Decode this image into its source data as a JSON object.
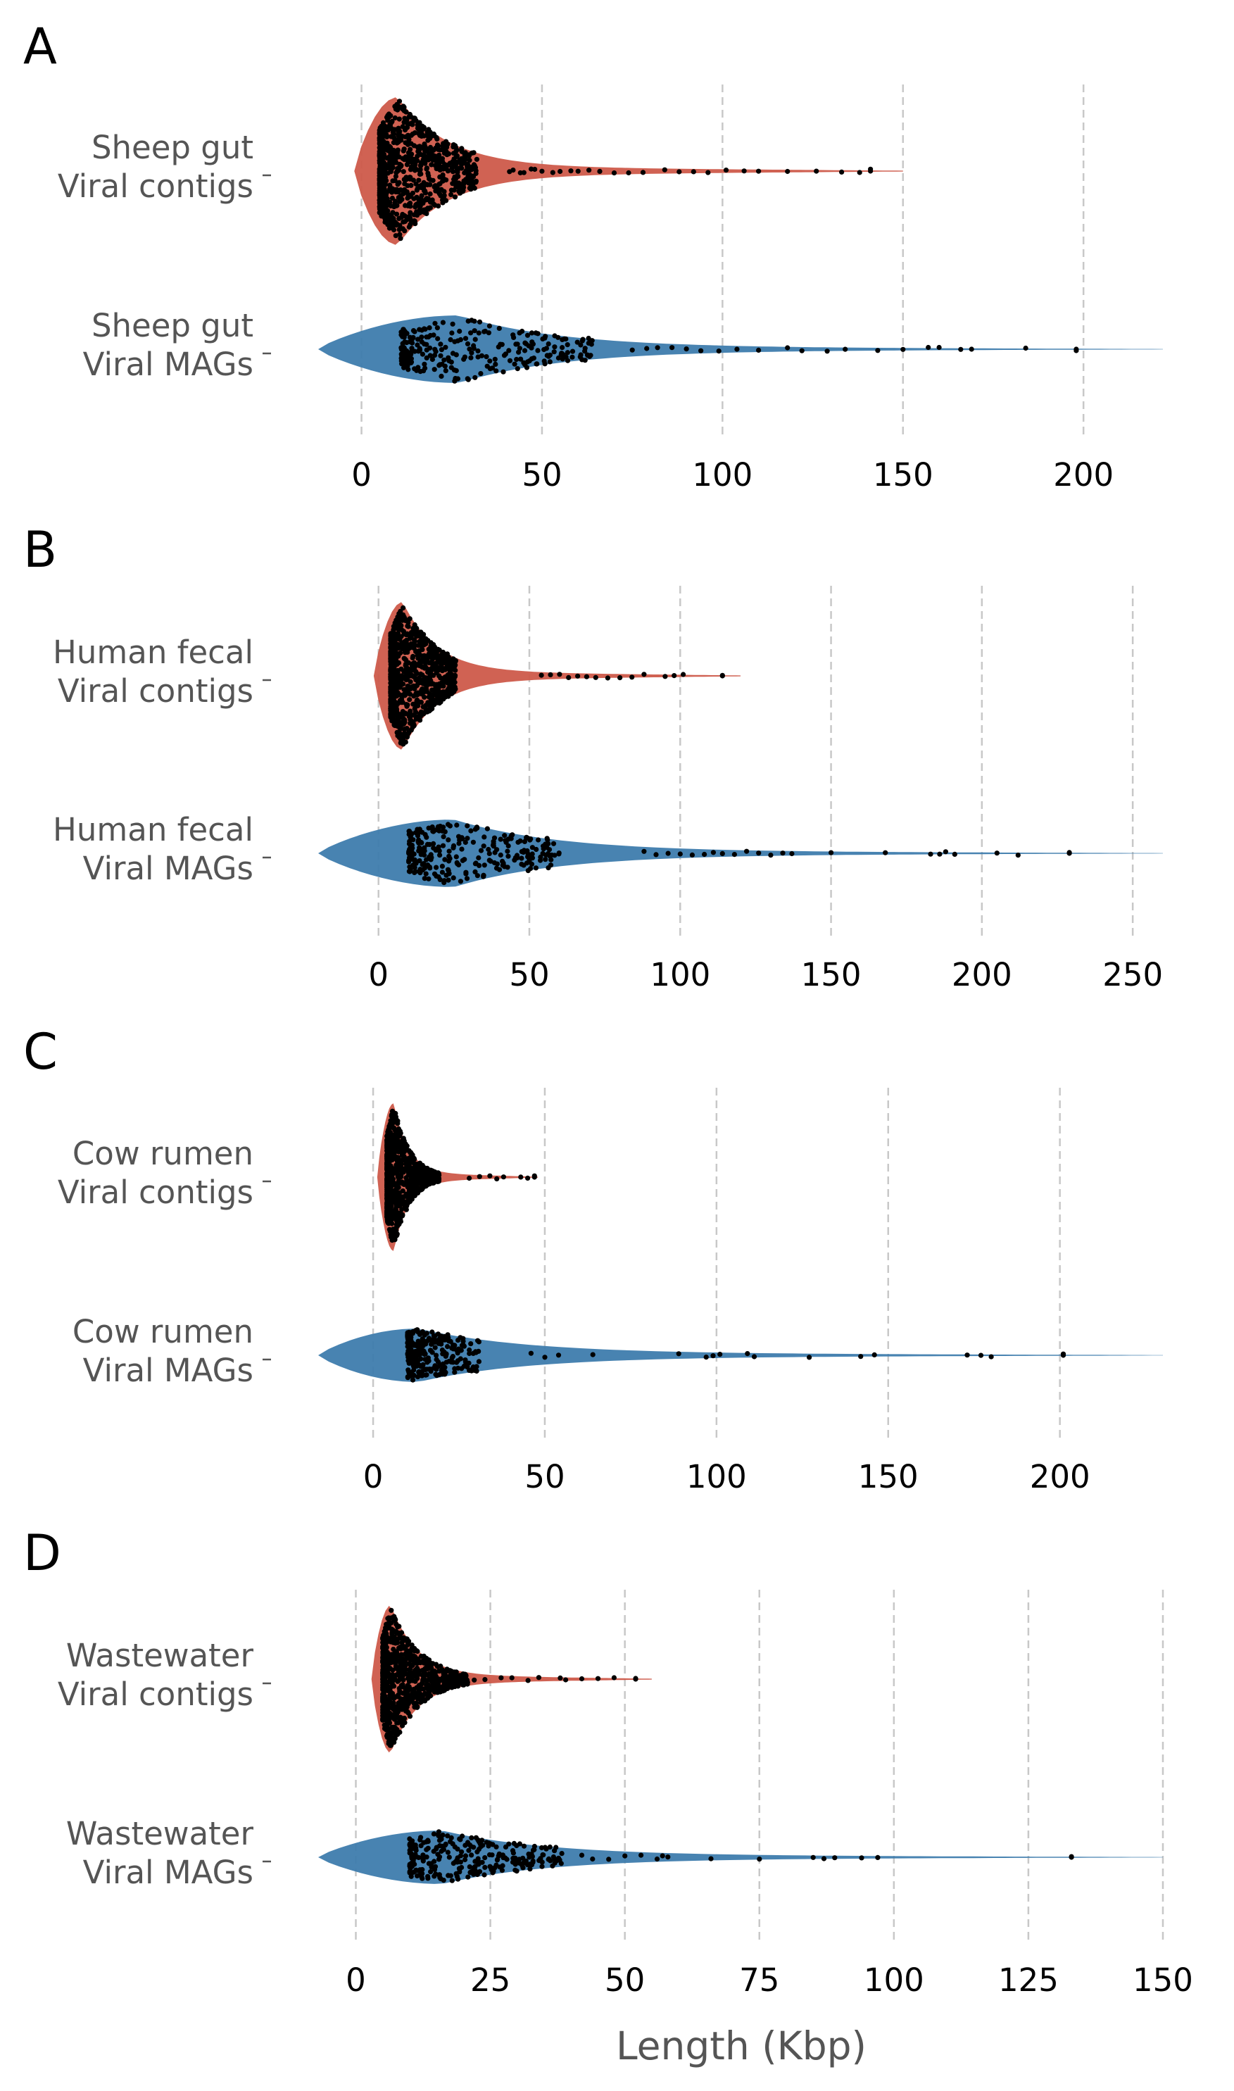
{
  "xlabel": "Length (Kbp)",
  "colors": {
    "contigs": "#cd5a4a",
    "mags": "#3e7cad",
    "points": "#000000"
  },
  "chart_data": [
    {
      "type": "scatter",
      "panel": "A",
      "xticks": [
        0,
        50,
        100,
        150,
        200
      ],
      "xlim": [
        -12,
        222
      ],
      "rows": [
        {
          "label": [
            "Sheep gut",
            "Viral contigs"
          ],
          "kind": "contigs",
          "violin_end": 150,
          "min": 5,
          "median": 10,
          "max": 141,
          "tail": [
            41,
            42,
            44,
            45,
            47,
            48,
            50,
            53,
            55,
            58,
            60,
            63,
            66,
            70,
            74,
            78,
            84,
            88,
            92,
            96,
            101,
            106,
            110,
            118,
            126,
            133,
            138,
            141
          ]
        },
        {
          "label": [
            "Sheep gut",
            "Viral MAGs"
          ],
          "kind": "mags",
          "violin_end": 222,
          "min": 11,
          "median": 27,
          "max": 198,
          "tail": [
            75,
            79,
            82,
            86,
            90,
            94,
            99,
            104,
            110,
            118,
            122,
            129,
            134,
            143,
            150,
            157,
            160,
            166,
            169,
            184,
            198
          ]
        }
      ]
    },
    {
      "type": "scatter",
      "panel": "B",
      "xticks": [
        0,
        50,
        100,
        150,
        200,
        250
      ],
      "xlim": [
        -20,
        260
      ],
      "rows": [
        {
          "label": [
            "Human fecal",
            "Viral contigs"
          ],
          "kind": "contigs",
          "violin_end": 120,
          "min": 4,
          "median": 8,
          "max": 114,
          "tail": [
            54,
            57,
            60,
            63,
            66,
            69,
            72,
            76,
            80,
            84,
            88,
            95,
            98,
            101,
            114
          ]
        },
        {
          "label": [
            "Human fecal",
            "Viral MAGs"
          ],
          "kind": "mags",
          "violin_end": 260,
          "min": 10,
          "median": 25,
          "max": 229,
          "tail": [
            88,
            92,
            96,
            100,
            104,
            108,
            111,
            114,
            118,
            122,
            126,
            130,
            134,
            137,
            150,
            168,
            183,
            186,
            188,
            191,
            205,
            212,
            229
          ]
        }
      ]
    },
    {
      "type": "scatter",
      "panel": "C",
      "xticks": [
        0,
        50,
        100,
        150,
        200
      ],
      "xlim": [
        -16,
        230
      ],
      "rows": [
        {
          "label": [
            "Cow rumen",
            "Viral contigs"
          ],
          "kind": "contigs",
          "violin_end": 48,
          "min": 4,
          "median": 6,
          "max": 47,
          "tail": [
            28,
            31,
            34,
            36,
            38,
            43,
            45,
            47
          ]
        },
        {
          "label": [
            "Cow rumen",
            "Viral MAGs"
          ],
          "kind": "mags",
          "violin_end": 230,
          "min": 10,
          "median": 13,
          "max": 201,
          "tail": [
            46,
            50,
            54,
            64,
            89,
            97,
            99,
            101,
            109,
            111,
            127,
            142,
            146,
            173,
            177,
            180,
            201
          ]
        }
      ]
    },
    {
      "type": "scatter",
      "panel": "D",
      "xticks": [
        0,
        25,
        50,
        75,
        100,
        125,
        150
      ],
      "xlim": [
        -7,
        150
      ],
      "rows": [
        {
          "label": [
            "Wastewater",
            "Viral contigs"
          ],
          "kind": "contigs",
          "violin_end": 55,
          "min": 5,
          "median": 6.5,
          "max": 52,
          "tail": [
            22,
            24,
            27,
            29,
            32,
            34,
            38,
            39,
            42,
            45,
            48,
            52
          ]
        },
        {
          "label": [
            "Wastewater",
            "Viral MAGs"
          ],
          "kind": "mags",
          "violin_end": 150,
          "min": 10,
          "median": 16,
          "max": 133,
          "tail": [
            42,
            44,
            47,
            50,
            53,
            56,
            57,
            58,
            66,
            75,
            85,
            87,
            89,
            94,
            97,
            133
          ]
        }
      ]
    }
  ]
}
